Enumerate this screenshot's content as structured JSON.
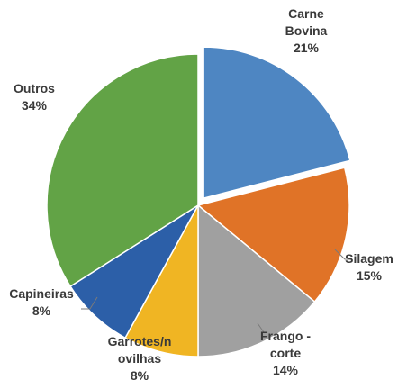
{
  "chart_data": {
    "type": "pie",
    "title": "",
    "slices": [
      {
        "label": [
          "Carne",
          "Bovina"
        ],
        "percent_label": "21%",
        "value": 21,
        "color": "#4e86c2"
      },
      {
        "label": [
          "Silagem"
        ],
        "percent_label": "15%",
        "value": 15,
        "color": "#e07327"
      },
      {
        "label": [
          "Frango -",
          "corte"
        ],
        "percent_label": "14%",
        "value": 14,
        "color": "#a0a0a0"
      },
      {
        "label": [
          "Garrotes/n",
          "ovilhas"
        ],
        "percent_label": "8%",
        "value": 8,
        "color": "#f0b523"
      },
      {
        "label": [
          "Capineiras"
        ],
        "percent_label": "8%",
        "value": 8,
        "color": "#2c5fa8"
      },
      {
        "label": [
          "Outros"
        ],
        "percent_label": "34%",
        "value": 34,
        "color": "#62a346"
      }
    ]
  }
}
